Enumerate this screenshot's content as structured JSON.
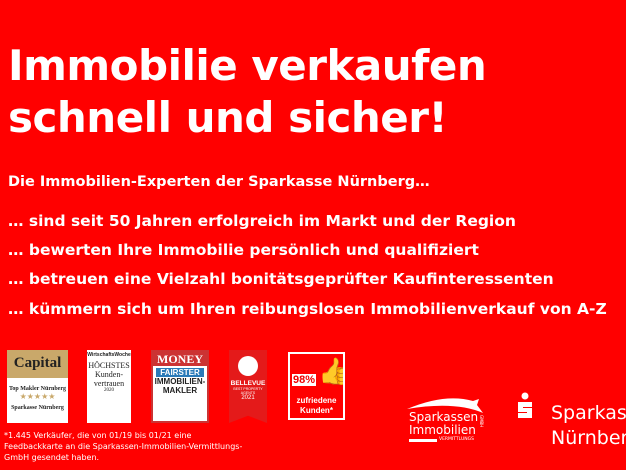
{
  "headline": {
    "line1": "Immobilie verkaufen",
    "line2": "schnell und sicher!"
  },
  "intro": "Die Immobilien-Experten der Sparkasse Nürnberg…",
  "bullets": [
    "… sind seit 50 Jahren erfolgreich im Markt und der Region",
    "… bewerten Ihre Immobilie persönlich und qualifiziert",
    "… betreuen eine Vielzahl bonitätsgeprüfter Kaufinteressenten",
    "… kümmern sich um Ihren reibungslosen Immobilienverkauf von A-Z"
  ],
  "badges": {
    "capital": {
      "brand": "Capital",
      "title": "Top Makler Nürnberg",
      "stars": 5,
      "name": "Sparkasse Nürnberg"
    },
    "wiwo": {
      "brand": "WirtschaftsWoche",
      "title": "HÖCHSTES Kunden-vertrauen",
      "year": "2020"
    },
    "money": {
      "brand": "MONEY",
      "line1": "FAIRSTER",
      "line2": "IMMOBILIEN-MAKLER"
    },
    "bellevue": {
      "brand": "BELLEVUE",
      "line": "BEST PROPERTY AGENTS",
      "year": "2021"
    },
    "satisfaction": {
      "percent": "98%",
      "label": "zufriedene Kunden*"
    }
  },
  "footnote": "*1.445 Verkäufer, die von 01/19 bis 01/21 eine Feedbackkarte an die Sparkassen-Immobilien-Vermittlungs-GmbH gesendet haben.",
  "logos": {
    "immobilien": {
      "line1": "Sparkassen",
      "line2": "Immobilien",
      "gmbh": "GMBH",
      "sub": "VERMITTLUNGS"
    },
    "sparkasse": {
      "line1": "Sparkasse",
      "line2": "Nürnberg"
    }
  },
  "colors": {
    "background": "#ff0000",
    "text": "#ffffff"
  }
}
